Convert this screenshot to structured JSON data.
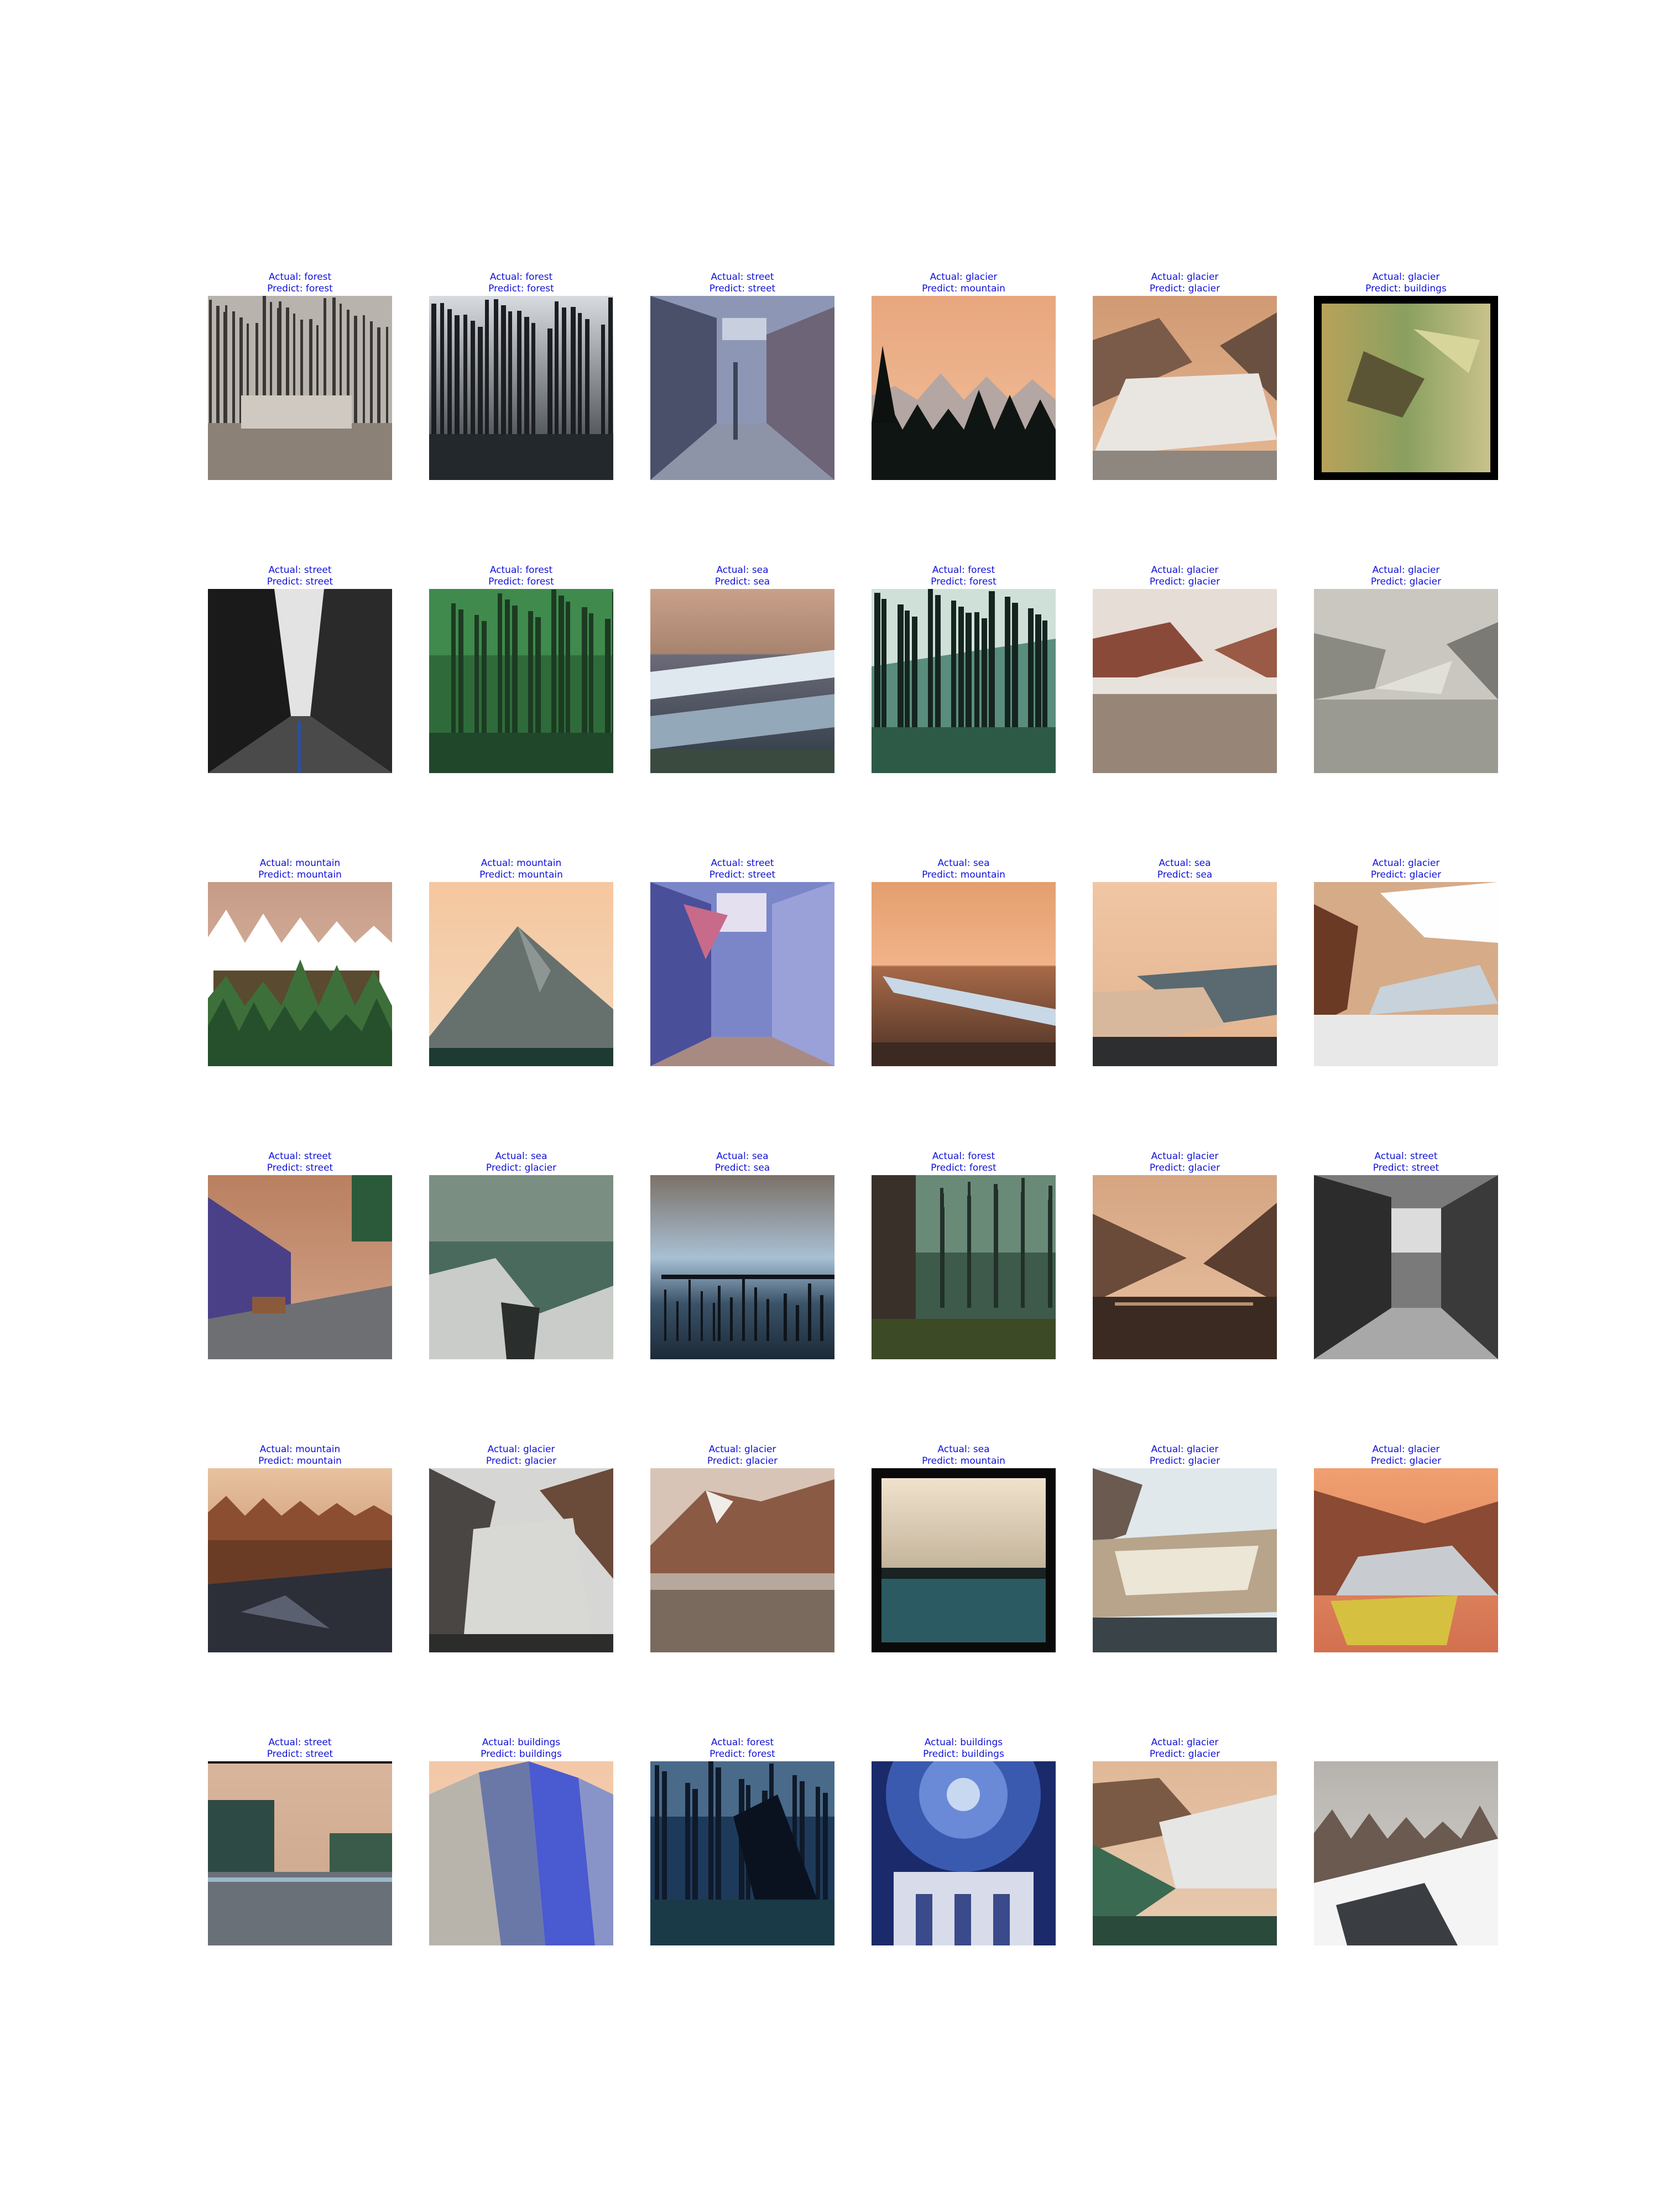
{
  "figure": {
    "rows": 6,
    "cols": 6,
    "items": [
      {
        "actual": "Actual: forest",
        "predict": "Predict: forest",
        "scene": "forest-snow"
      },
      {
        "actual": "Actual: forest",
        "predict": "Predict: forest",
        "scene": "forest-dark"
      },
      {
        "actual": "Actual: street",
        "predict": "Predict: street",
        "scene": "street-old"
      },
      {
        "actual": "Actual: glacier",
        "predict": "Predict: mountain",
        "scene": "mountain-sunset"
      },
      {
        "actual": "Actual: glacier",
        "predict": "Predict: glacier",
        "scene": "glacier-valley"
      },
      {
        "actual": "Actual: glacier",
        "predict": "Predict: buildings",
        "scene": "aerial-framed"
      },
      {
        "actual": "Actual: street",
        "predict": "Predict: street",
        "scene": "street-city-bw"
      },
      {
        "actual": "Actual: forest",
        "predict": "Predict: forest",
        "scene": "forest-green"
      },
      {
        "actual": "Actual: sea",
        "predict": "Predict: sea",
        "scene": "sea-waves"
      },
      {
        "actual": "Actual: forest",
        "predict": "Predict: forest",
        "scene": "forest-teal"
      },
      {
        "actual": "Actual: glacier",
        "predict": "Predict: glacier",
        "scene": "glacier-lake"
      },
      {
        "actual": "Actual: glacier",
        "predict": "Predict: glacier",
        "scene": "glacier-grey"
      },
      {
        "actual": "Actual: mountain",
        "predict": "Predict: mountain",
        "scene": "mountain-painting"
      },
      {
        "actual": "Actual: mountain",
        "predict": "Predict: mountain",
        "scene": "mountain-peak"
      },
      {
        "actual": "Actual: street",
        "predict": "Predict: street",
        "scene": "street-alley"
      },
      {
        "actual": "Actual: sea",
        "predict": "Predict: mountain",
        "scene": "sea-ice"
      },
      {
        "actual": "Actual: sea",
        "predict": "Predict: sea",
        "scene": "sea-beach"
      },
      {
        "actual": "Actual: glacier",
        "predict": "Predict: glacier",
        "scene": "glacier-clouds"
      },
      {
        "actual": "Actual: street",
        "predict": "Predict: street",
        "scene": "street-cars"
      },
      {
        "actual": "Actual: sea",
        "predict": "Predict: glacier",
        "scene": "sea-rocks"
      },
      {
        "actual": "Actual: sea",
        "predict": "Predict: sea",
        "scene": "sea-pier"
      },
      {
        "actual": "Actual: forest",
        "predict": "Predict: forest",
        "scene": "forest-trunk"
      },
      {
        "actual": "Actual: glacier",
        "predict": "Predict: glacier",
        "scene": "glacier-fjord"
      },
      {
        "actual": "Actual: street",
        "predict": "Predict: street",
        "scene": "street-bw-market"
      },
      {
        "actual": "Actual: mountain",
        "predict": "Predict: mountain",
        "scene": "mountain-rocky"
      },
      {
        "actual": "Actual: glacier",
        "predict": "Predict: glacier",
        "scene": "glacier-tongue"
      },
      {
        "actual": "Actual: glacier",
        "predict": "Predict: glacier",
        "scene": "glacier-bay"
      },
      {
        "actual": "Actual: sea",
        "predict": "Predict: mountain",
        "scene": "sea-framed"
      },
      {
        "actual": "Actual: glacier",
        "predict": "Predict: glacier",
        "scene": "glacier-icefield"
      },
      {
        "actual": "Actual: glacier",
        "predict": "Predict: glacier",
        "scene": "glacier-yellow-lake"
      },
      {
        "actual": "Actual: street",
        "predict": "Predict: street",
        "scene": "street-wide"
      },
      {
        "actual": "Actual: buildings",
        "predict": "Predict: buildings",
        "scene": "buildings-facade"
      },
      {
        "actual": "Actual: forest",
        "predict": "Predict: forest",
        "scene": "forest-blue"
      },
      {
        "actual": "Actual: buildings",
        "predict": "Predict: buildings",
        "scene": "buildings-dome"
      },
      {
        "actual": "Actual: glacier",
        "predict": "Predict: glacier",
        "scene": "glacier-green-valley"
      },
      {
        "actual": "",
        "predict": "",
        "scene": "mountain-snow-slope"
      }
    ]
  },
  "colors": {
    "caption": "#1010d8",
    "background": "#ffffff"
  }
}
